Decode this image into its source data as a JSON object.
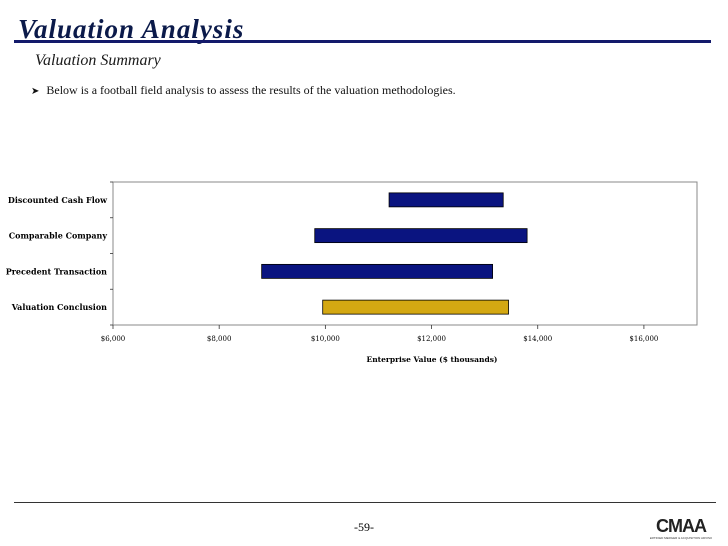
{
  "header": {
    "title": "Valuation Analysis",
    "subtitle": "Valuation Summary"
  },
  "body": {
    "bullet": "Below is a football field analysis to assess the results of the valuation methodologies."
  },
  "chart_data": {
    "type": "bar",
    "orientation": "horizontal-floating",
    "categories": [
      "Discounted Cash Flow",
      "Comparable Company",
      "Precedent Transaction",
      "Valuation Conclusion"
    ],
    "ranges": [
      {
        "label": "Discounted Cash Flow",
        "low": 11200,
        "high": 13350,
        "color": "#0a1480"
      },
      {
        "label": "Comparable Company",
        "low": 9800,
        "high": 13800,
        "color": "#0a1480"
      },
      {
        "label": "Precedent Transaction",
        "low": 8800,
        "high": 13150,
        "color": "#0a1480"
      },
      {
        "label": "Valuation Conclusion",
        "low": 9950,
        "high": 13450,
        "color": "#d4a812"
      }
    ],
    "xlim": [
      6000,
      17000
    ],
    "xticks": [
      6000,
      8000,
      10000,
      12000,
      14000,
      16000
    ],
    "xtick_labels": [
      "$6,000",
      "$8,000",
      "$10,000",
      "$12,000",
      "$14,000",
      "$16,000"
    ],
    "xlabel": "Enterprise Value ($ thousands)",
    "ylabel": "",
    "grid": false,
    "legend": "none"
  },
  "footer": {
    "page_number": "-59-",
    "logo_text": "CMAA",
    "logo_caption": "CERTIFIED MERGER & ACQUISITION ADVISOR"
  },
  "colors": {
    "title": "#0b1a4a",
    "rule": "#131a6b",
    "bar": "#0a1480",
    "conclusion_bar": "#d4a812",
    "plot_border": "#888888"
  }
}
